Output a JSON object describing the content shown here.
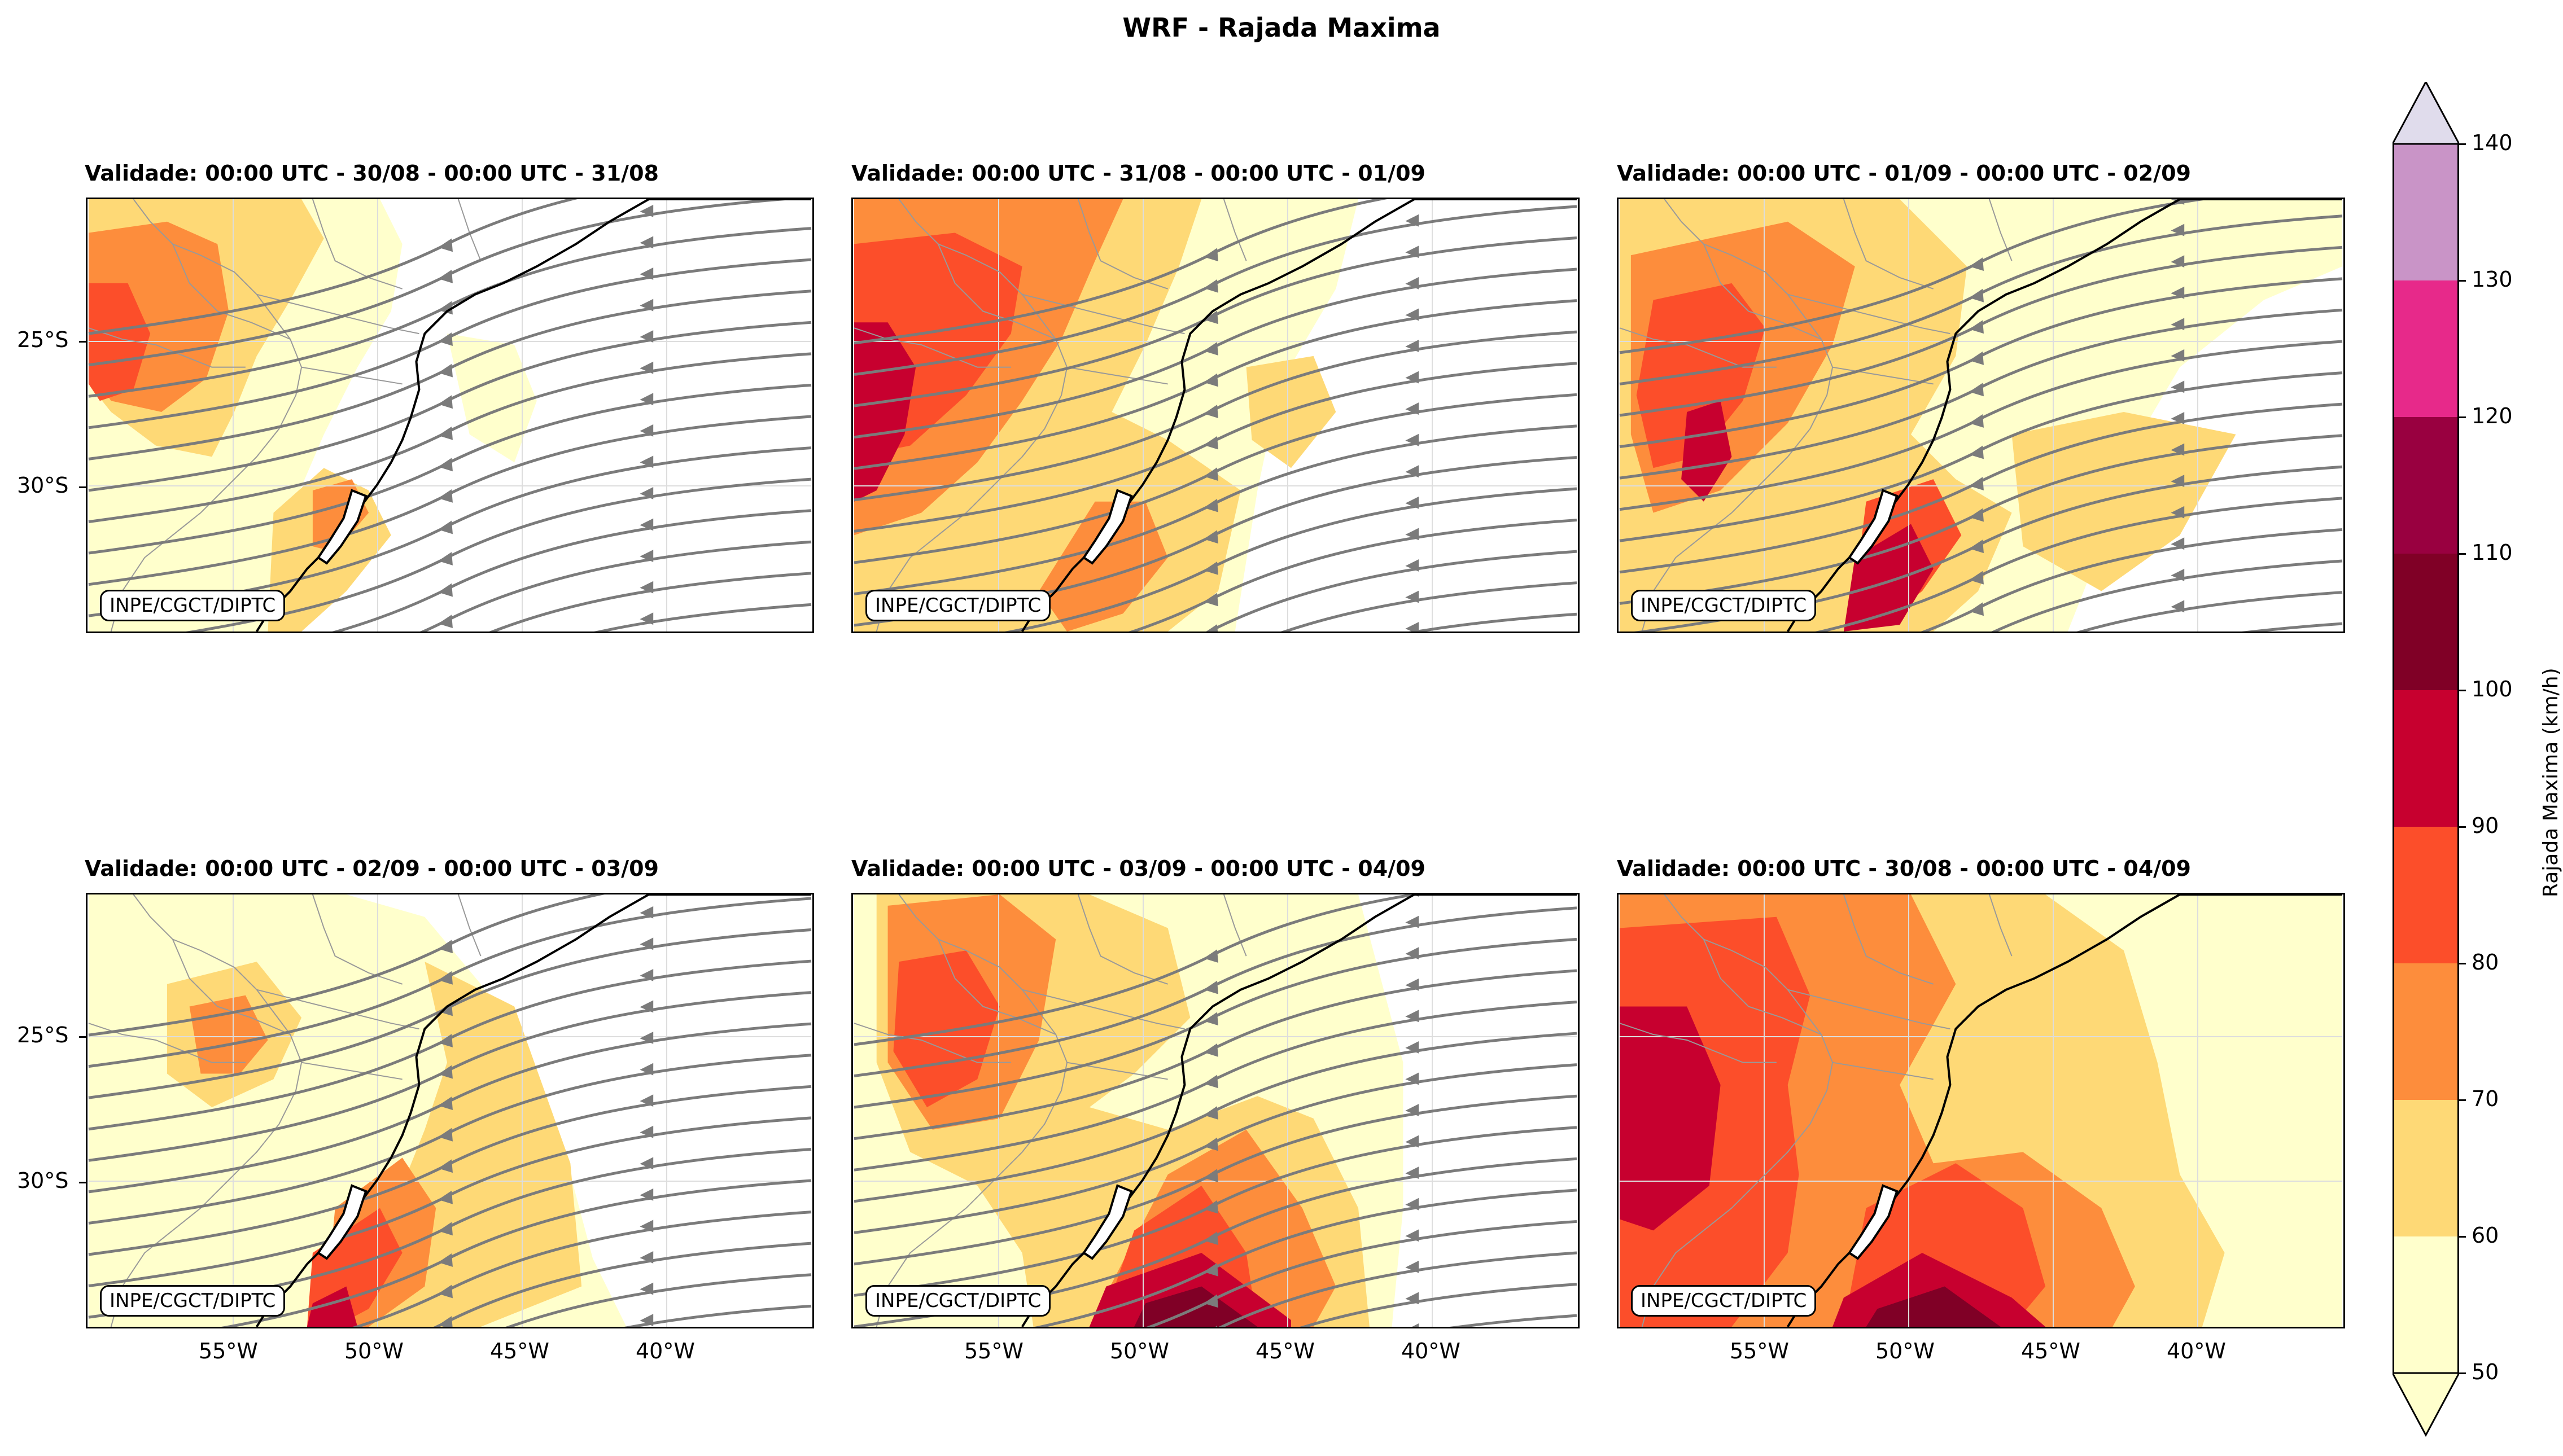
{
  "figure": {
    "title": "WRF - Rajada Maxima"
  },
  "panels": [
    {
      "title": "Validade: 00:00 UTC - 30/08 - 00:00 UTC - 31/08",
      "credit": "INPE/CGCT/DIPTC"
    },
    {
      "title": "Validade: 00:00 UTC - 31/08 - 00:00 UTC - 01/09",
      "credit": "INPE/CGCT/DIPTC"
    },
    {
      "title": "Validade: 00:00 UTC - 01/09 - 00:00 UTC - 02/09",
      "credit": "INPE/CGCT/DIPTC"
    },
    {
      "title": "Validade: 00:00 UTC - 02/09 - 00:00 UTC - 03/09",
      "credit": "INPE/CGCT/DIPTC"
    },
    {
      "title": "Validade: 00:00 UTC - 03/09 - 00:00 UTC - 04/09",
      "credit": "INPE/CGCT/DIPTC"
    },
    {
      "title": "Validade: 00:00 UTC - 30/08 - 00:00 UTC - 04/09",
      "credit": "INPE/CGCT/DIPTC"
    }
  ],
  "axes": {
    "lat_ticks": [
      "25°S",
      "30°S"
    ],
    "lon_ticks": [
      "55°W",
      "50°W",
      "45°W",
      "40°W"
    ]
  },
  "colorbar": {
    "label": "Rajada Maxima (km/h)",
    "ticks": [
      "50",
      "60",
      "70",
      "80",
      "90",
      "100",
      "110",
      "120",
      "130",
      "140"
    ],
    "colors": [
      "#ffffcc",
      "#fed976",
      "#fd8d3c",
      "#fc4e2a",
      "#c7002f",
      "#800026",
      "#990040",
      "#e7298a",
      "#c994c7",
      "#e0dcec"
    ],
    "extend": "both"
  },
  "colors": {
    "streamline": "#7b7b7b",
    "coast": "#000000",
    "border": "#999999",
    "grid": "#dddddd"
  }
}
